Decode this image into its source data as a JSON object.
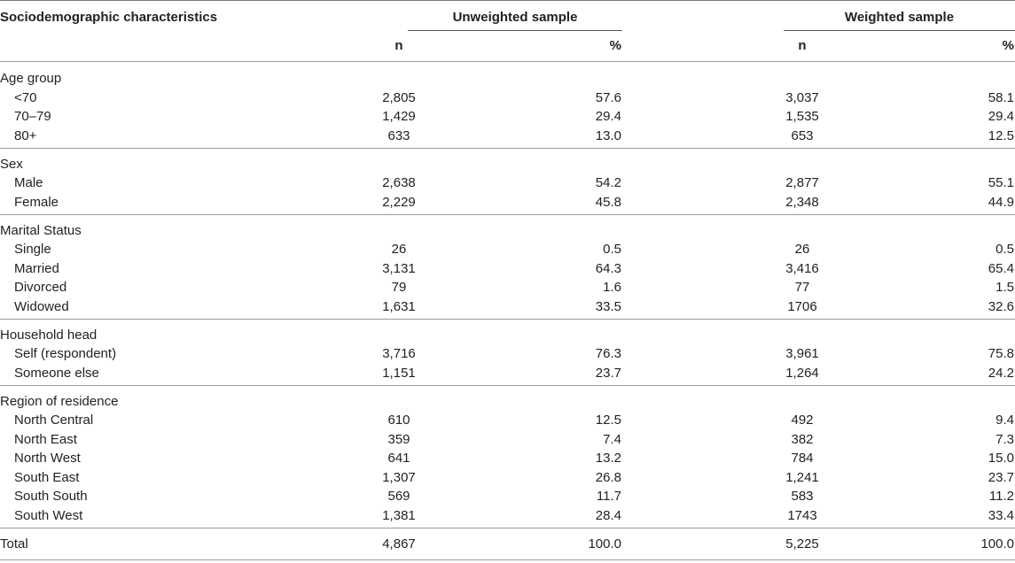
{
  "header": {
    "characteristics": "Sociodemographic characteristics",
    "unweighted": "Unweighted sample",
    "weighted": "Weighted sample",
    "n": "n",
    "pct": "%"
  },
  "groups": [
    {
      "label": "Age group",
      "rows": [
        {
          "label": "<70",
          "un": "2,805",
          "up": "57.6",
          "wn": "3,037",
          "wp": "58.1"
        },
        {
          "label": "70–79",
          "un": "1,429",
          "up": "29.4",
          "wn": "1,535",
          "wp": "29.4"
        },
        {
          "label": "80+",
          "un": "633",
          "up": "13.0",
          "wn": "653",
          "wp": "12.5"
        }
      ]
    },
    {
      "label": "Sex",
      "rows": [
        {
          "label": "Male",
          "un": "2,638",
          "up": "54.2",
          "wn": "2,877",
          "wp": "55.1"
        },
        {
          "label": "Female",
          "un": "2,229",
          "up": "45.8",
          "wn": "2,348",
          "wp": "44.9"
        }
      ]
    },
    {
      "label": "Marital Status",
      "rows": [
        {
          "label": "Single",
          "un": "26",
          "up": "0.5",
          "wn": "26",
          "wp": "0.5"
        },
        {
          "label": "Married",
          "un": "3,131",
          "up": "64.3",
          "wn": "3,416",
          "wp": "65.4"
        },
        {
          "label": "Divorced",
          "un": "79",
          "up": "1.6",
          "wn": "77",
          "wp": "1.5"
        },
        {
          "label": "Widowed",
          "un": "1,631",
          "up": "33.5",
          "wn": "1706",
          "wp": "32.6"
        }
      ]
    },
    {
      "label": "Household head",
      "rows": [
        {
          "label": "Self (respondent)",
          "un": "3,716",
          "up": "76.3",
          "wn": "3,961",
          "wp": "75.8"
        },
        {
          "label": "Someone else",
          "un": "1,151",
          "up": "23.7",
          "wn": "1,264",
          "wp": "24.2"
        }
      ]
    },
    {
      "label": "Region of residence",
      "rows": [
        {
          "label": "North Central",
          "un": "610",
          "up": "12.5",
          "wn": "492",
          "wp": "9.4"
        },
        {
          "label": "North East",
          "un": "359",
          "up": "7.4",
          "wn": "382",
          "wp": "7.3"
        },
        {
          "label": "North West",
          "un": "641",
          "up": "13.2",
          "wn": "784",
          "wp": "15.0"
        },
        {
          "label": "South East",
          "un": "1,307",
          "up": "26.8",
          "wn": "1,241",
          "wp": "23.7"
        },
        {
          "label": "South South",
          "un": "569",
          "up": "11.7",
          "wn": "583",
          "wp": "11.2"
        },
        {
          "label": "South West",
          "un": "1,381",
          "up": "28.4",
          "wn": "1743",
          "wp": "33.4"
        }
      ]
    }
  ],
  "total": {
    "label": "Total",
    "un": "4,867",
    "up": "100.0",
    "wn": "5,225",
    "wp": "100.0"
  }
}
